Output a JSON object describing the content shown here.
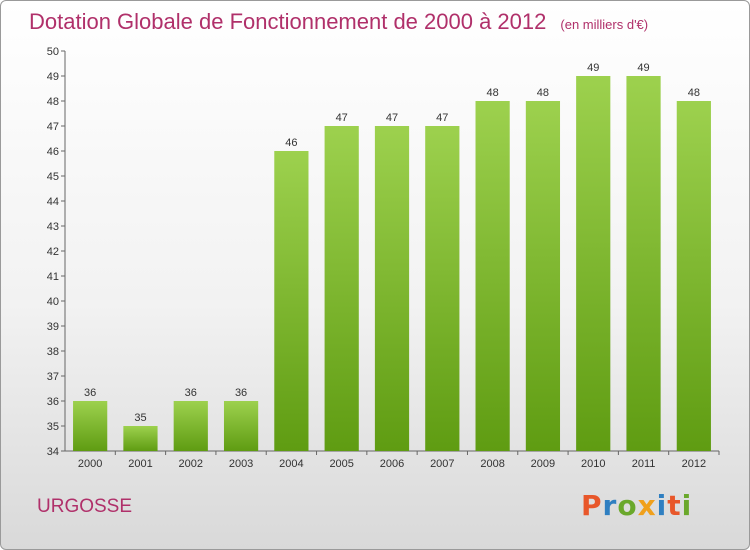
{
  "header": {
    "title": "Dotation Globale de Fonctionnement de 2000 à 2012",
    "unit": "(en milliers d'€)"
  },
  "footer": {
    "commune": "URGOSSE",
    "brand": "Proxiti",
    "brand_colors": [
      "#e8572a",
      "#2f7fc1",
      "#6aa82b",
      "#f0a01c",
      "#2f7fc1",
      "#e8572a",
      "#6aa82b"
    ]
  },
  "chart_data": {
    "type": "bar",
    "title": "Dotation Globale de Fonctionnement de 2000 à 2012",
    "xlabel": "",
    "ylabel": "",
    "categories": [
      "2000",
      "2001",
      "2002",
      "2003",
      "2004",
      "2005",
      "2006",
      "2007",
      "2008",
      "2009",
      "2010",
      "2011",
      "2012"
    ],
    "values": [
      36,
      35,
      36,
      36,
      46,
      47,
      47,
      47,
      48,
      48,
      49,
      49,
      48
    ],
    "ylim": [
      34,
      50
    ],
    "yticks": [
      34,
      35,
      36,
      37,
      38,
      39,
      40,
      41,
      42,
      43,
      44,
      45,
      46,
      47,
      48,
      49,
      50
    ],
    "grid": false,
    "bar_color_top": "#9dd14e",
    "bar_color_bottom": "#5f9c12"
  }
}
